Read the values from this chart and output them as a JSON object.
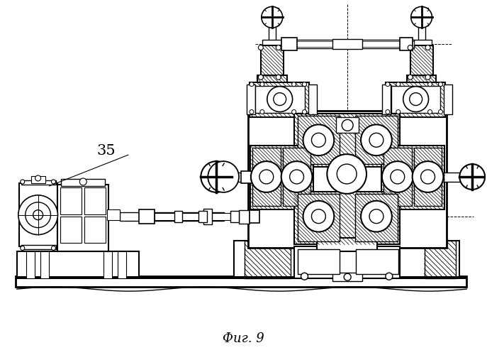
{
  "title": "Фиг. 9",
  "label_35": "35",
  "bg_color": "#ffffff",
  "line_color": "#000000",
  "title_fontsize": 13,
  "label_fontsize": 15,
  "figsize": [
    6.87,
    5.0
  ],
  "dpi": 100
}
